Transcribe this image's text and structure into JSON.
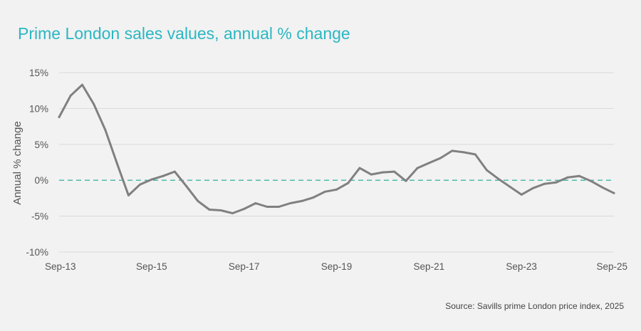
{
  "title": "Prime London sales values, annual % change",
  "source": "Source: Savills prime London price index, 2025",
  "colors": {
    "background": "#f2f2f2",
    "title": "#2bb7c2",
    "line": "#808080",
    "zero_line": "#4fb9a8",
    "grid": "#d9d9d9"
  },
  "chart_data": {
    "type": "line",
    "ylabel": "Annual % change",
    "ylim": [
      -10,
      15
    ],
    "yticks": [
      15,
      10,
      5,
      0,
      -5,
      -10
    ],
    "ytick_labels": [
      "15%",
      "10%",
      "5%",
      "0%",
      "-5%",
      "-10%"
    ],
    "xtick_labels": [
      "Sep-13",
      "Sep-15",
      "Sep-17",
      "Sep-19",
      "Sep-21",
      "Sep-23",
      "Sep-25"
    ],
    "xtick_dates": [
      "2013-09",
      "2015-09",
      "2017-09",
      "2019-09",
      "2021-09",
      "2023-09",
      "2025-09"
    ],
    "xlim": [
      "2013-09",
      "2025-09"
    ],
    "grid": true,
    "zero_line": "dashed",
    "series": [
      {
        "x": [
          "2013-09",
          "2013-12",
          "2014-03",
          "2014-06",
          "2014-09",
          "2014-12",
          "2015-03",
          "2015-06",
          "2015-09",
          "2015-12",
          "2016-03",
          "2016-06",
          "2016-09",
          "2016-12",
          "2017-03",
          "2017-06",
          "2017-09",
          "2017-12",
          "2018-03",
          "2018-06",
          "2018-09",
          "2018-12",
          "2019-03",
          "2019-06",
          "2019-09",
          "2019-12",
          "2020-03",
          "2020-06",
          "2020-09",
          "2020-12",
          "2021-03",
          "2021-06",
          "2021-09",
          "2021-12",
          "2022-03",
          "2022-06",
          "2022-09",
          "2022-12",
          "2023-03",
          "2023-06",
          "2023-09",
          "2023-12",
          "2024-03",
          "2024-06",
          "2024-09",
          "2024-12",
          "2025-03",
          "2025-06",
          "2025-09"
        ],
        "values": [
          8.8,
          11.8,
          13.3,
          10.6,
          7.0,
          2.4,
          -2.1,
          -0.6,
          0.1,
          0.6,
          1.2,
          -0.8,
          -2.9,
          -4.1,
          -4.2,
          -4.6,
          -4.0,
          -3.2,
          -3.7,
          -3.7,
          -3.2,
          -2.9,
          -2.4,
          -1.6,
          -1.3,
          -0.4,
          1.7,
          0.8,
          1.1,
          1.2,
          -0.1,
          1.7,
          2.4,
          3.1,
          4.1,
          3.9,
          3.6,
          1.4,
          0.2,
          -0.9,
          -2.0,
          -1.1,
          -0.5,
          -0.3,
          0.4,
          0.6,
          -0.1,
          -1.0,
          -1.8
        ]
      }
    ]
  }
}
